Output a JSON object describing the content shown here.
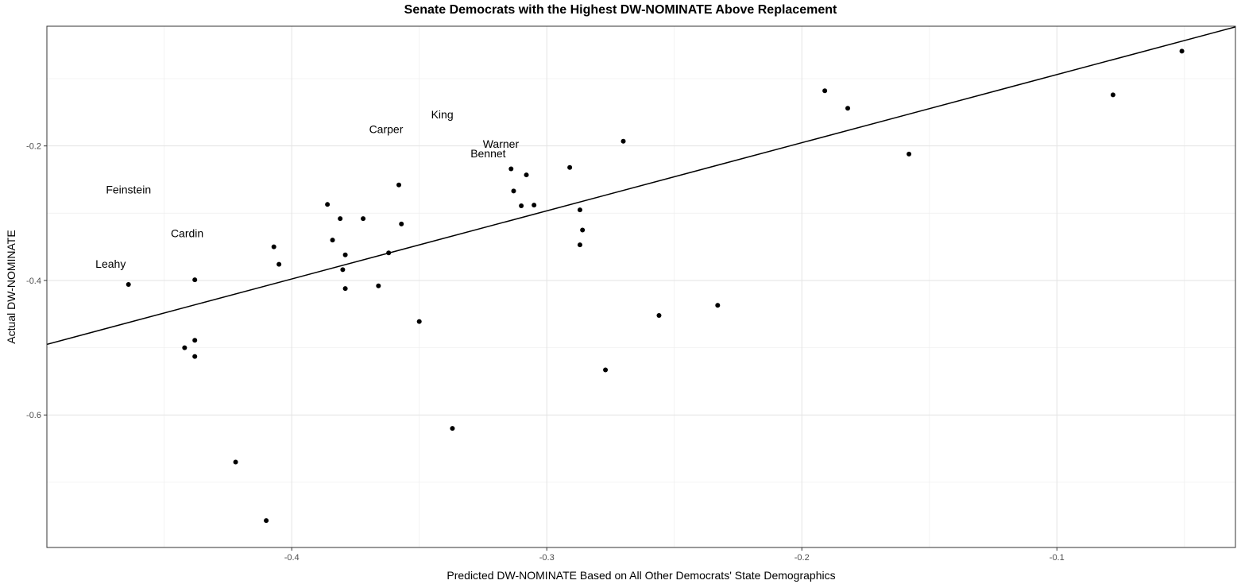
{
  "chart_data": {
    "type": "scatter",
    "title": "Senate Democrats with the Highest DW-NOMINATE Above Replacement",
    "xlabel": "Predicted DW-NOMINATE Based on All Other Democrats' State Demographics",
    "ylabel": "Actual DW-NOMINATE",
    "xlim": [
      -0.496,
      -0.03
    ],
    "ylim": [
      -0.797,
      -0.022
    ],
    "x_ticks": [
      -0.4,
      -0.3,
      -0.2,
      -0.1
    ],
    "x_tick_labels": [
      "-0.4",
      "-0.3",
      "-0.2",
      "-0.1"
    ],
    "y_ticks": [
      -0.2,
      -0.4,
      -0.6
    ],
    "y_tick_labels": [
      "-0.2",
      "-0.4",
      "-0.6"
    ],
    "grid": true,
    "trend_line": {
      "x": [
        -0.496,
        -0.03
      ],
      "y": [
        -0.495,
        -0.023
      ]
    },
    "points": [
      {
        "x": -0.464,
        "y": -0.406
      },
      {
        "x": -0.438,
        "y": -0.399
      },
      {
        "x": -0.438,
        "y": -0.489
      },
      {
        "x": -0.438,
        "y": -0.513
      },
      {
        "x": -0.442,
        "y": -0.5
      },
      {
        "x": -0.422,
        "y": -0.67
      },
      {
        "x": -0.41,
        "y": -0.757
      },
      {
        "x": -0.407,
        "y": -0.35
      },
      {
        "x": -0.405,
        "y": -0.376
      },
      {
        "x": -0.386,
        "y": -0.287
      },
      {
        "x": -0.384,
        "y": -0.34
      },
      {
        "x": -0.381,
        "y": -0.308
      },
      {
        "x": -0.38,
        "y": -0.384
      },
      {
        "x": -0.379,
        "y": -0.362
      },
      {
        "x": -0.379,
        "y": -0.412
      },
      {
        "x": -0.372,
        "y": -0.308
      },
      {
        "x": -0.366,
        "y": -0.408
      },
      {
        "x": -0.362,
        "y": -0.359
      },
      {
        "x": -0.358,
        "y": -0.258
      },
      {
        "x": -0.357,
        "y": -0.316
      },
      {
        "x": -0.35,
        "y": -0.461
      },
      {
        "x": -0.337,
        "y": -0.62
      },
      {
        "x": -0.314,
        "y": -0.234
      },
      {
        "x": -0.313,
        "y": -0.267
      },
      {
        "x": -0.31,
        "y": -0.289
      },
      {
        "x": -0.308,
        "y": -0.243
      },
      {
        "x": -0.305,
        "y": -0.288
      },
      {
        "x": -0.291,
        "y": -0.232
      },
      {
        "x": -0.287,
        "y": -0.295
      },
      {
        "x": -0.287,
        "y": -0.347
      },
      {
        "x": -0.286,
        "y": -0.325
      },
      {
        "x": -0.277,
        "y": -0.533
      },
      {
        "x": -0.27,
        "y": -0.193
      },
      {
        "x": -0.256,
        "y": -0.452
      },
      {
        "x": -0.233,
        "y": -0.437
      },
      {
        "x": -0.191,
        "y": -0.118
      },
      {
        "x": -0.182,
        "y": -0.144
      },
      {
        "x": -0.158,
        "y": -0.212
      },
      {
        "x": -0.078,
        "y": -0.124
      },
      {
        "x": -0.051,
        "y": -0.059
      }
    ],
    "annotations": [
      {
        "text": "King",
        "x": -0.341,
        "y": -0.153
      },
      {
        "text": "Carper",
        "x": -0.363,
        "y": -0.175
      },
      {
        "text": "Warner",
        "x": -0.318,
        "y": -0.197
      },
      {
        "text": "Bennet",
        "x": -0.323,
        "y": -0.211
      },
      {
        "text": "Feinstein",
        "x": -0.464,
        "y": -0.265
      },
      {
        "text": "Cardin",
        "x": -0.441,
        "y": -0.33
      },
      {
        "text": "Leahy",
        "x": -0.471,
        "y": -0.375
      }
    ]
  }
}
